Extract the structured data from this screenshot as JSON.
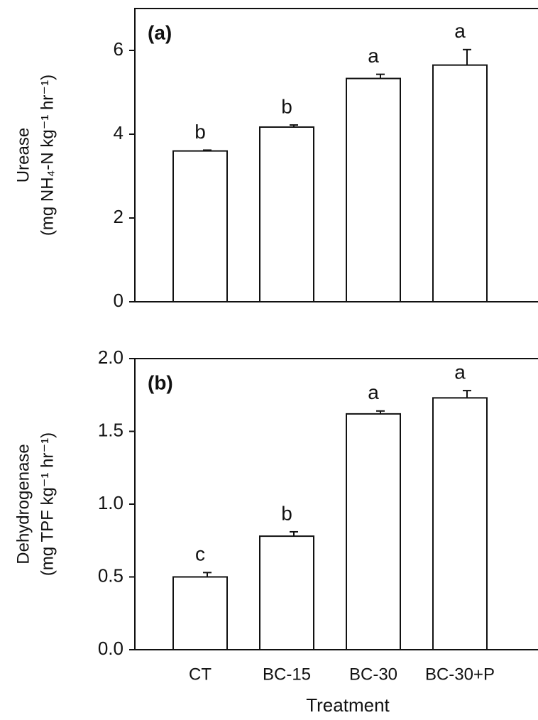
{
  "chart_data": [
    {
      "type": "bar",
      "panel_label": "(a)",
      "y_label": [
        "Urease",
        "(mg NH₄-N kg⁻¹ hr⁻¹)"
      ],
      "categories": [
        null,
        null,
        null,
        null
      ],
      "values": [
        3.6,
        4.17,
        5.33,
        5.65
      ],
      "errors": [
        0.02,
        0.05,
        0.1,
        0.37
      ],
      "value_annotations": [
        "b",
        "b",
        "a",
        "a"
      ],
      "color": "#ffffff",
      "ylim": [
        0,
        7
      ],
      "yticks": [
        0,
        2,
        4,
        6
      ]
    },
    {
      "type": "bar",
      "panel_label": "(b)",
      "y_label": [
        "Dehydrogenase",
        "(mg TPF kg⁻¹ hr⁻¹)"
      ],
      "x_label": "Treatment",
      "categories": [
        "CT",
        "BC-15",
        "BC-30",
        "BC-30+P"
      ],
      "values": [
        0.5,
        0.78,
        1.62,
        1.73
      ],
      "errors": [
        0.03,
        0.03,
        0.02,
        0.05
      ],
      "value_annotations": [
        "c",
        "b",
        "a",
        "a"
      ],
      "color": "#ffffff",
      "ylim": [
        0,
        2
      ],
      "yticks": [
        {
          "value": 0,
          "label": "0.0"
        },
        0.5,
        {
          "value": 1,
          "label": "1.0"
        },
        1.5,
        {
          "value": 2,
          "label": "2.0"
        }
      ]
    }
  ]
}
